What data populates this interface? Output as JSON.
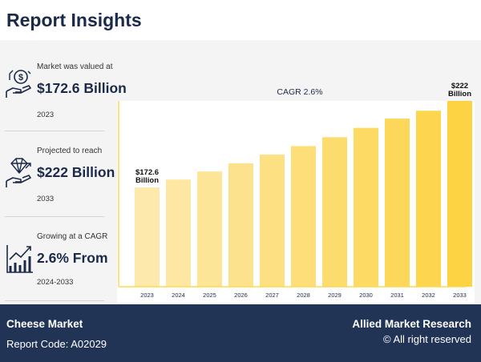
{
  "header": {
    "title": "Report Insights"
  },
  "stats": [
    {
      "caption": "Market was valued at",
      "value": "$172.6 Billion",
      "period": "2023",
      "icon": "money-hand-icon"
    },
    {
      "caption": "Projected to reach",
      "value": "$222 Billion",
      "period": "2033",
      "icon": "diamond-hand-icon"
    },
    {
      "caption": "Growing at a CAGR",
      "value": "2.6% From",
      "period": "2024-2033",
      "icon": "growth-chart-icon"
    }
  ],
  "chart_data": {
    "type": "bar",
    "categories": [
      "2023",
      "2024",
      "2025",
      "2026",
      "2027",
      "2028",
      "2029",
      "2030",
      "2031",
      "2032",
      "2033"
    ],
    "values": [
      172.6,
      177.1,
      181.7,
      186.4,
      191.3,
      196.2,
      201.3,
      206.6,
      211.9,
      216.4,
      222.0
    ],
    "annotation": "CAGR 2.6%",
    "data_labels": [
      {
        "index": 0,
        "lines": [
          "$172.6",
          "Billion"
        ]
      },
      {
        "index": 10,
        "lines": [
          "$222",
          "Billion"
        ]
      }
    ],
    "colors": {
      "start": "#fde9ac",
      "end": "#fdd344",
      "axis": "#ffd84d"
    },
    "xlabel": "",
    "ylabel": "",
    "ylim": [
      0,
      240
    ],
    "grid": false,
    "legend": "none"
  },
  "footer": {
    "market": "Cheese Market",
    "report_code": "Report Code: A02029",
    "brand": "Allied Market Research",
    "rights": "© All right reserved"
  }
}
